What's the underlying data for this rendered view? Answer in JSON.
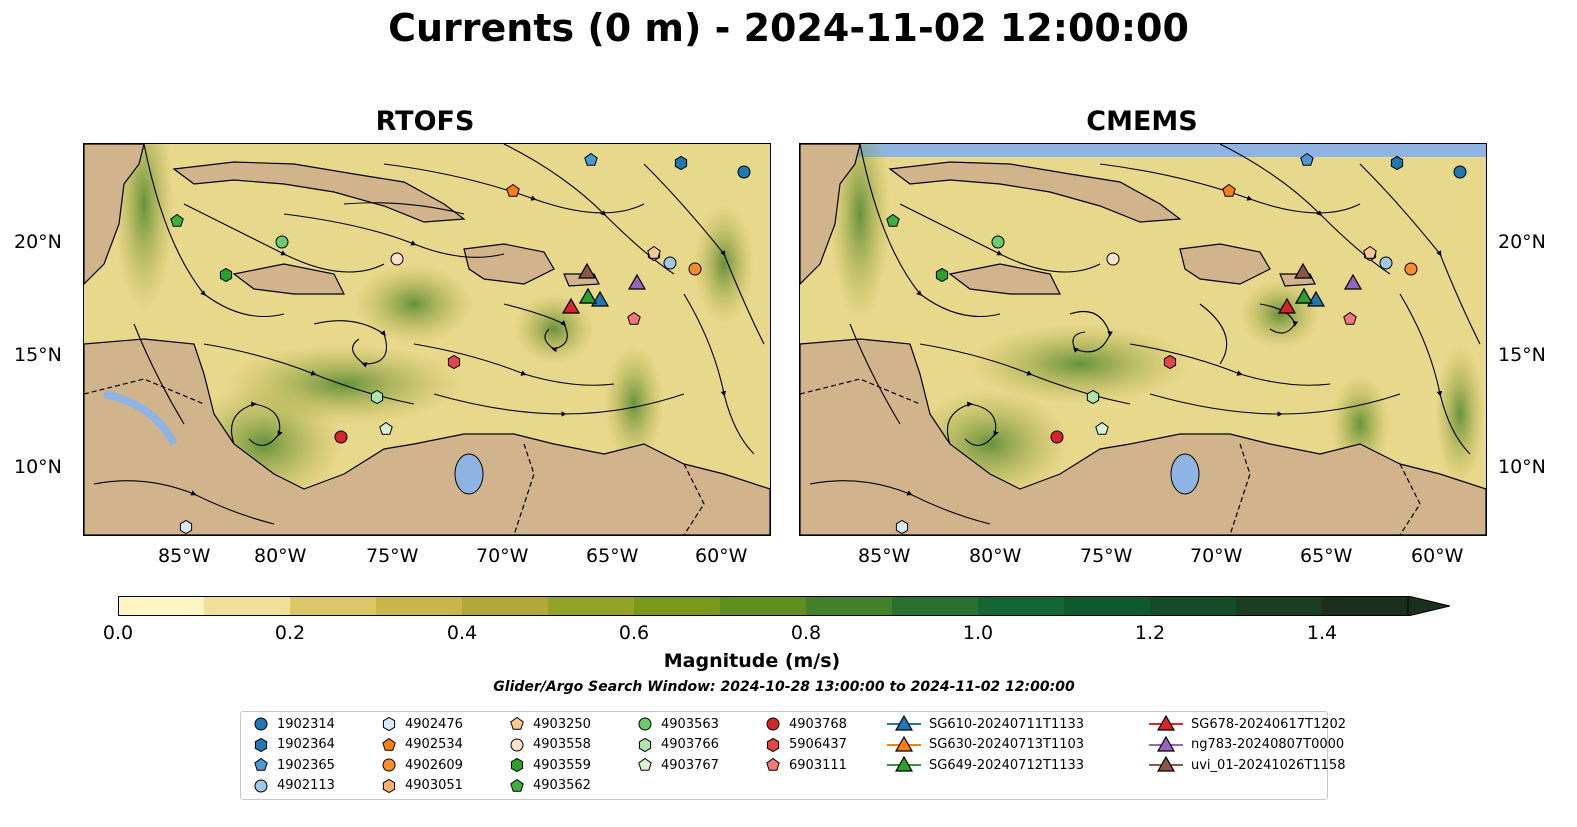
{
  "title": "Currents (0 m) - 2024-11-02 12:00:00",
  "panels": [
    {
      "title": "RTOFS"
    },
    {
      "title": "CMEMS"
    }
  ],
  "axes": {
    "lat_labels": [
      "20°N",
      "15°N",
      "10°N"
    ],
    "lon_labels": [
      "85°W",
      "80°W",
      "75°W",
      "70°W",
      "65°W",
      "60°W"
    ]
  },
  "colorbar": {
    "label": "Magnitude (m/s)",
    "ticks": [
      "0.0",
      "0.2",
      "0.4",
      "0.6",
      "0.8",
      "1.0",
      "1.2",
      "1.4"
    ],
    "range": [
      0,
      1.5
    ],
    "extend": "max",
    "colors": [
      "#fef6c2",
      "#f0e09a",
      "#dcc66a",
      "#c9b54b",
      "#b0a83a",
      "#93a228",
      "#7a9a1e",
      "#5f8e1f",
      "#42812a",
      "#2a7030",
      "#146634",
      "#0f5a2c",
      "#154b27",
      "#1a3d22",
      "#1c2e1c"
    ]
  },
  "search_window": "Glider/Argo Search Window: 2024-10-28 13:00:00 to 2024-11-02 12:00:00",
  "legend": {
    "items": [
      {
        "label": "1902314",
        "marker": "circle",
        "color": "#1f77b4"
      },
      {
        "label": "1902364",
        "marker": "hexagon",
        "color": "#1f77b4"
      },
      {
        "label": "1902365",
        "marker": "pentagon",
        "color": "#4a98d4"
      },
      {
        "label": "4902113",
        "marker": "circle",
        "color": "#9ec7e8"
      },
      {
        "label": "4902476",
        "marker": "hexagon",
        "color": "#d6eaf8"
      },
      {
        "label": "4902534",
        "marker": "pentagon",
        "color": "#ff7f0e"
      },
      {
        "label": "4902609",
        "marker": "circle",
        "color": "#ff8c2a"
      },
      {
        "label": "4903051",
        "marker": "hexagon",
        "color": "#ffae6b"
      },
      {
        "label": "4903250",
        "marker": "pentagon",
        "color": "#ffc992"
      },
      {
        "label": "4903558",
        "marker": "circle",
        "color": "#ffe3cc"
      },
      {
        "label": "4903559",
        "marker": "hexagon",
        "color": "#2ca02c"
      },
      {
        "label": "4903562",
        "marker": "pentagon",
        "color": "#3fae3f"
      },
      {
        "label": "4903563",
        "marker": "circle",
        "color": "#6cc96c"
      },
      {
        "label": "4903766",
        "marker": "hexagon",
        "color": "#aee5a8"
      },
      {
        "label": "4903767",
        "marker": "pentagon",
        "color": "#d8f5d2"
      },
      {
        "label": "4903768",
        "marker": "circle",
        "color": "#d62728"
      },
      {
        "label": "5906437",
        "marker": "hexagon",
        "color": "#e04848"
      },
      {
        "label": "6903111",
        "marker": "pentagon",
        "color": "#f07878"
      },
      {
        "label": "SG610-20240711T1133",
        "marker": "triangle",
        "color": "#1f77b4"
      },
      {
        "label": "SG630-20240713T1103",
        "marker": "triangle",
        "color": "#ff7f0e"
      },
      {
        "label": "SG649-20240712T1133",
        "marker": "triangle",
        "color": "#2ca02c"
      },
      {
        "label": "SG678-20240617T1202",
        "marker": "triangle",
        "color": "#d62728"
      },
      {
        "label": "ng783-20240807T0000",
        "marker": "triangle",
        "color": "#9467bd"
      },
      {
        "label": "uvi_01-20241026T1158",
        "marker": "triangle",
        "color": "#8c564b"
      }
    ]
  },
  "map_colors": {
    "land": "#d2b48c",
    "lake": "#8fb4e3",
    "ocean_low": "#e9d98f",
    "current_mid": "#a7a431",
    "current_high": "#3d7d24"
  }
}
